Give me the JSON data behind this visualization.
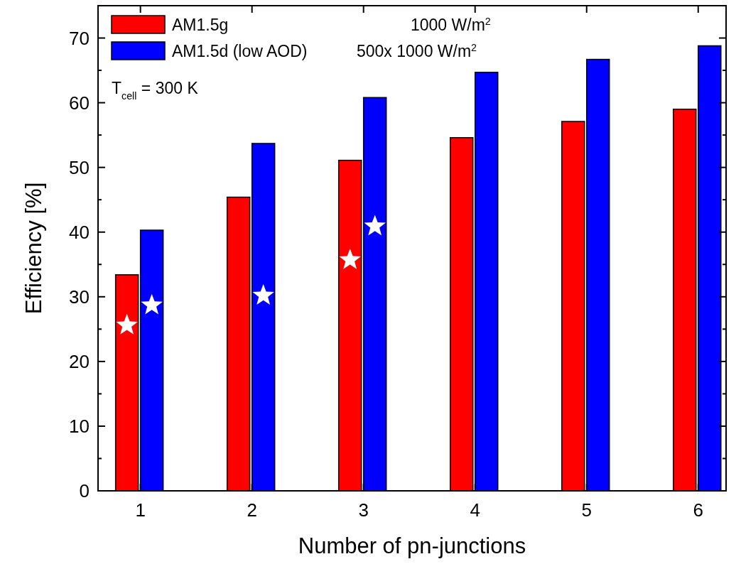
{
  "chart_data": {
    "type": "bar",
    "xlabel": "Number of pn-junctions",
    "ylabel": "Efficiency [%]",
    "categories": [
      "1",
      "2",
      "3",
      "4",
      "5",
      "6"
    ],
    "series": [
      {
        "name": "AM1.5g",
        "color": "#ff0000",
        "values": [
          33.4,
          45.4,
          51.1,
          54.6,
          57.1,
          59.0
        ]
      },
      {
        "name": "AM1.5d (low AOD)",
        "color": "#0000ff",
        "values": [
          40.3,
          53.7,
          60.8,
          64.7,
          66.7,
          68.8
        ]
      },
      {
        "type": "scatter",
        "color": "#ffffff",
        "marker": "star",
        "x": [
          "1",
          "3"
        ],
        "values": [
          25.6,
          35.7
        ]
      },
      {
        "type": "scatter",
        "color": "#ffffff",
        "marker": "star",
        "x": [
          "1",
          "2",
          "3"
        ],
        "values": [
          28.7,
          30.2,
          40.9
        ]
      }
    ],
    "ylim": [
      0,
      75
    ],
    "yticks": [
      0,
      10,
      20,
      30,
      40,
      50,
      60,
      70
    ],
    "legend": "top left",
    "annotations": [
      "1000 W/m$^{2}$",
      "500x 1000 W/m$^{2}$",
      "T$_{cell}$ = 300 K"
    ]
  }
}
